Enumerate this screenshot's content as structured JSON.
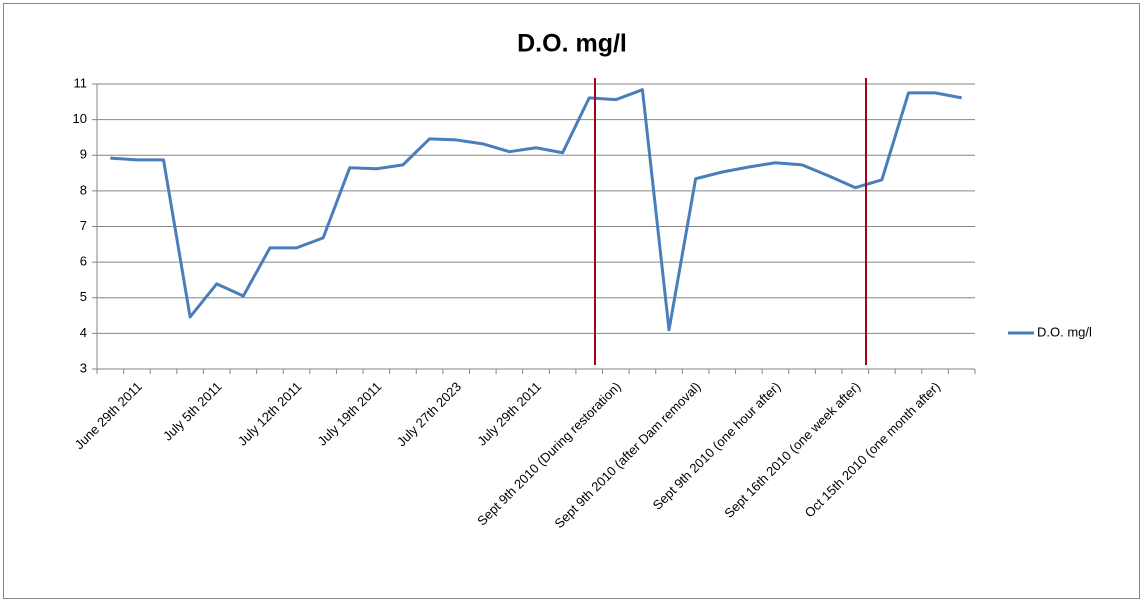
{
  "chart_data": {
    "type": "line",
    "title": "D.O. mg/l",
    "categories": [
      "June 29th 2011",
      null,
      null,
      "July 5th 2011",
      null,
      null,
      "July 12th 2011",
      null,
      null,
      "July 19th 2011",
      null,
      null,
      "July 27th 2023",
      null,
      null,
      "July 29th 2011",
      null,
      null,
      "Sept 9th 2010 (During restoration)",
      null,
      null,
      "Sept 9th 2010 (after Dam removal)",
      null,
      null,
      "Sept 9th 2010 (one hour after)",
      null,
      null,
      "Sept 16th 2010 (one week after)",
      null,
      null,
      "Oct 15th 2010 (one month after)",
      null,
      null
    ],
    "series": [
      {
        "name": "D.O. mg/l",
        "color": "#4a7ebb",
        "values": [
          8.92,
          8.87,
          8.87,
          4.46,
          5.39,
          5.05,
          6.4,
          6.4,
          6.68,
          8.65,
          8.62,
          8.73,
          9.46,
          9.43,
          9.32,
          9.1,
          9.21,
          9.07,
          10.61,
          10.56,
          10.84,
          4.1,
          8.34,
          8.53,
          8.67,
          8.79,
          8.73,
          8.42,
          8.09,
          8.31,
          10.75,
          10.75,
          10.61
        ]
      }
    ],
    "ylim": [
      3,
      11
    ],
    "yticks": [
      3,
      4,
      5,
      6,
      7,
      8,
      9,
      10,
      11
    ],
    "grid": true,
    "legend": "right"
  }
}
